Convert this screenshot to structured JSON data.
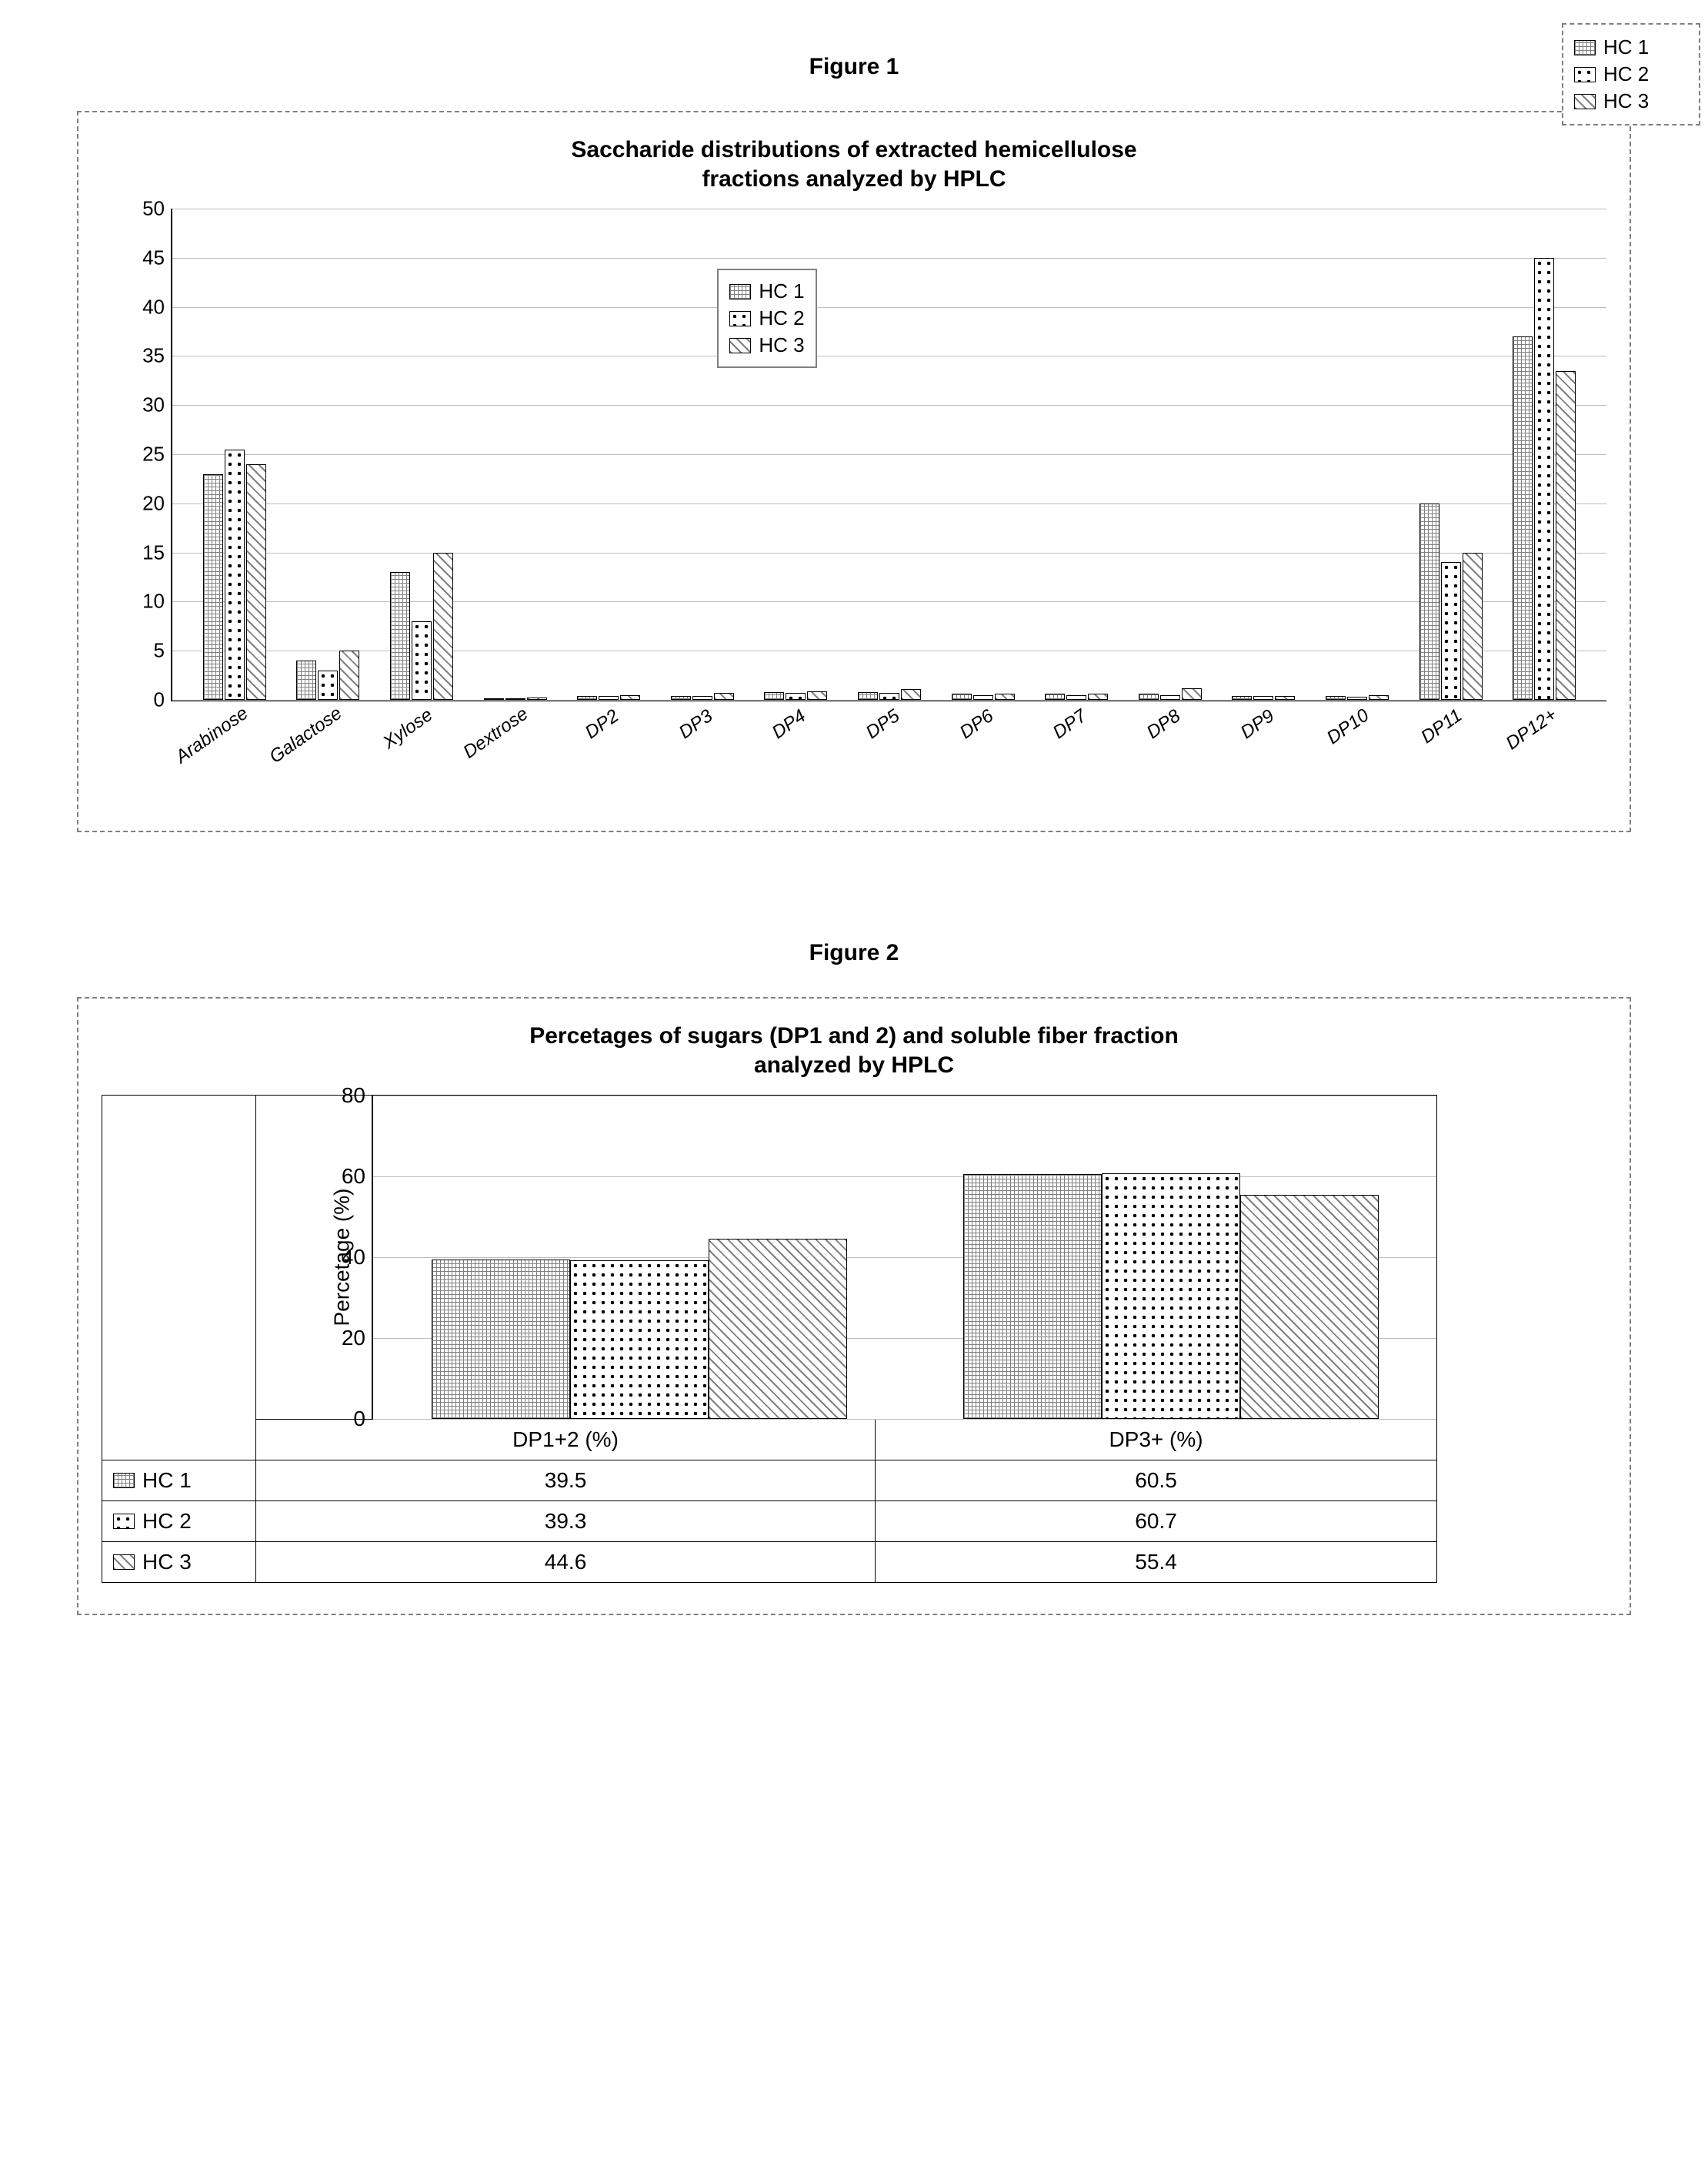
{
  "figure1_label": "Figure 1",
  "figure2_label": "Figure 2",
  "chart1": {
    "type": "bar",
    "title_line1": "Saccharide distributions of extracted hemicellulose",
    "title_line2": "fractions analyzed by HPLC",
    "categories": [
      "Arabinose",
      "Galactose",
      "Xylose",
      "Dextrose",
      "DP2",
      "DP3",
      "DP4",
      "DP5",
      "DP6",
      "DP7",
      "DP8",
      "DP9",
      "DP10",
      "DP11",
      "DP12+"
    ],
    "series": [
      {
        "name": "HC 1",
        "pattern": "pat-hc1",
        "values": [
          23,
          4,
          13,
          0.1,
          0.4,
          0.4,
          0.8,
          0.8,
          0.6,
          0.6,
          0.6,
          0.4,
          0.4,
          20,
          37
        ]
      },
      {
        "name": "HC 2",
        "pattern": "pat-hc2",
        "values": [
          25.5,
          3,
          8,
          0.1,
          0.4,
          0.4,
          0.7,
          0.7,
          0.5,
          0.5,
          0.5,
          0.4,
          0.3,
          14,
          45
        ]
      },
      {
        "name": "HC 3",
        "pattern": "pat-hc3",
        "values": [
          24,
          5,
          15,
          0.2,
          0.5,
          0.7,
          0.9,
          1.1,
          0.6,
          0.6,
          1.2,
          0.4,
          0.5,
          15,
          33.5
        ]
      }
    ],
    "ylim": [
      0,
      50
    ],
    "ytick_step": 5,
    "grid_color": "#bdbdbd",
    "border_color": "#000000",
    "background_color": "#ffffff",
    "label_fontsize": 24
  },
  "chart2": {
    "type": "bar",
    "title_line1": "Percetages of sugars (DP1 and 2) and soluble fiber fraction",
    "title_line2": "analyzed by HPLC",
    "ylabel": "Percetage (%)",
    "categories": [
      "DP1+2 (%)",
      "DP3+ (%)"
    ],
    "series": [
      {
        "name": "HC 1",
        "pattern": "pat-hc1",
        "values": [
          39.5,
          60.5
        ]
      },
      {
        "name": "HC 2",
        "pattern": "pat-hc2",
        "values": [
          39.3,
          60.7
        ]
      },
      {
        "name": "HC 3",
        "pattern": "pat-hc3",
        "values": [
          44.6,
          55.4
        ]
      }
    ],
    "ylim": [
      0,
      80
    ],
    "ytick_step": 20,
    "grid_color": "#bdbdbd",
    "border_color": "#000000",
    "background_color": "#ffffff",
    "label_fontsize": 28,
    "table": {
      "columns": [
        "DP1+2 (%)",
        "DP3+ (%)"
      ],
      "rows": [
        {
          "name": "HC 1",
          "pattern": "pat-hc1",
          "cells": [
            "39.5",
            "60.5"
          ]
        },
        {
          "name": "HC 2",
          "pattern": "pat-hc2",
          "cells": [
            "39.3",
            "60.7"
          ]
        },
        {
          "name": "HC 3",
          "pattern": "pat-hc3",
          "cells": [
            "44.6",
            "55.4"
          ]
        }
      ]
    }
  }
}
